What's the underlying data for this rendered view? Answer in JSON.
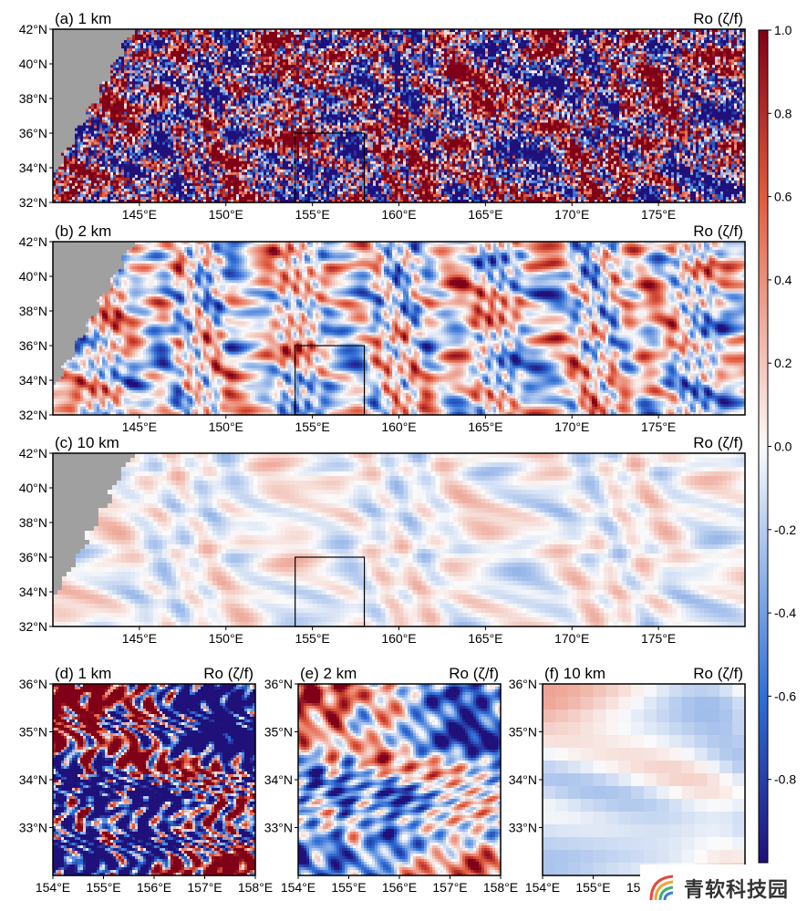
{
  "chart_data": {
    "type": "heatmap",
    "quantity_label": "Ro (ζ/f)",
    "colormap": "diverging blue-white-red",
    "colorbar": {
      "range": [
        -1.0,
        1.0
      ],
      "ticks": [
        "1.0",
        "0.8",
        "0.6",
        "0.4",
        "0.2",
        "0.0",
        "-0.2",
        "-0.4",
        "-0.6",
        "-0.8"
      ],
      "tick_values": [
        1.0,
        0.8,
        0.6,
        0.4,
        0.2,
        0.0,
        -0.2,
        -0.4,
        -0.6,
        -0.8
      ]
    },
    "colors": {
      "negative_max": "#20107a",
      "negative": "#2f6fd6",
      "neutral": "#fbfbfb",
      "positive": "#e25a3d",
      "positive_max": "#800018",
      "land": "#a0a0a0"
    },
    "panels": [
      {
        "id": "a",
        "title": "(a) 1 km",
        "resolution_km": 1,
        "amplitude": 1.0,
        "detail": 4,
        "lon_range": [
          140,
          180
        ],
        "lat_range": [
          32,
          42
        ],
        "x_ticks": [
          145,
          150,
          155,
          160,
          165,
          170,
          175
        ],
        "x_tick_labels": [
          "145°E",
          "150°E",
          "155°E",
          "160°E",
          "165°E",
          "170°E",
          "175°E"
        ],
        "y_ticks": [
          32,
          34,
          36,
          38,
          40,
          42
        ],
        "y_tick_labels": [
          "32°N",
          "34°N",
          "36°N",
          "38°N",
          "40°N",
          "42°N"
        ],
        "inset_box": {
          "lon": [
            154,
            158
          ],
          "lat": [
            32,
            36
          ]
        }
      },
      {
        "id": "b",
        "title": "(b) 2 km",
        "resolution_km": 2,
        "amplitude": 0.75,
        "detail": 2.5,
        "lon_range": [
          140,
          180
        ],
        "lat_range": [
          32,
          42
        ],
        "x_ticks": [
          145,
          150,
          155,
          160,
          165,
          170,
          175
        ],
        "x_tick_labels": [
          "145°E",
          "150°E",
          "155°E",
          "160°E",
          "165°E",
          "170°E",
          "175°E"
        ],
        "y_ticks": [
          32,
          34,
          36,
          38,
          40,
          42
        ],
        "y_tick_labels": [
          "32°N",
          "34°N",
          "36°N",
          "38°N",
          "40°N",
          "42°N"
        ],
        "inset_box": {
          "lon": [
            154,
            158
          ],
          "lat": [
            32,
            36
          ]
        }
      },
      {
        "id": "c",
        "title": "(c) 10 km",
        "resolution_km": 10,
        "amplitude": 0.4,
        "detail": 1,
        "lon_range": [
          140,
          180
        ],
        "lat_range": [
          32,
          42
        ],
        "x_ticks": [
          145,
          150,
          155,
          160,
          165,
          170,
          175
        ],
        "x_tick_labels": [
          "145°E",
          "150°E",
          "155°E",
          "160°E",
          "165°E",
          "170°E",
          "175°E"
        ],
        "y_ticks": [
          32,
          34,
          36,
          38,
          40,
          42
        ],
        "y_tick_labels": [
          "32°N",
          "34°N",
          "36°N",
          "38°N",
          "40°N",
          "42°N"
        ],
        "inset_box": {
          "lon": [
            154,
            158
          ],
          "lat": [
            32,
            36
          ]
        }
      },
      {
        "id": "d",
        "title": "(d) 1 km",
        "resolution_km": 1,
        "amplitude": 1.0,
        "detail": 5,
        "lon_range": [
          154,
          158
        ],
        "lat_range": [
          32,
          36
        ],
        "x_ticks": [
          154,
          155,
          156,
          157,
          158
        ],
        "x_tick_labels": [
          "154°E",
          "155°E",
          "156°E",
          "157°E",
          "158°E"
        ],
        "y_ticks": [
          33,
          34,
          35,
          36
        ],
        "y_tick_labels": [
          "33°N",
          "34°N",
          "35°N",
          "36°N"
        ]
      },
      {
        "id": "e",
        "title": "(e) 2 km",
        "resolution_km": 2,
        "amplitude": 0.8,
        "detail": 3,
        "lon_range": [
          154,
          158
        ],
        "lat_range": [
          32,
          36
        ],
        "x_ticks": [
          154,
          155,
          156,
          157,
          158
        ],
        "x_tick_labels": [
          "154°E",
          "155°E",
          "156°E",
          "157°E",
          "158°E"
        ],
        "y_ticks": [
          33,
          34,
          35,
          36
        ],
        "y_tick_labels": [
          "33°N",
          "34°N",
          "35°N",
          "36°N"
        ]
      },
      {
        "id": "f",
        "title": "(f) 10 km",
        "resolution_km": 10,
        "amplitude": 0.45,
        "detail": 1,
        "lon_range": [
          154,
          158
        ],
        "lat_range": [
          32,
          36
        ],
        "x_ticks": [
          154,
          155,
          156,
          157,
          158
        ],
        "x_tick_labels": [
          "154°E",
          "155°E",
          "156°E",
          "157°E",
          "158°E"
        ],
        "y_ticks": [
          33,
          34,
          35,
          36
        ],
        "y_tick_labels": [
          "33°N",
          "34°N",
          "35°N",
          "36°N"
        ]
      }
    ]
  },
  "watermark": {
    "text": "青软科技园",
    "icon": "rainbow-signal-logo"
  }
}
